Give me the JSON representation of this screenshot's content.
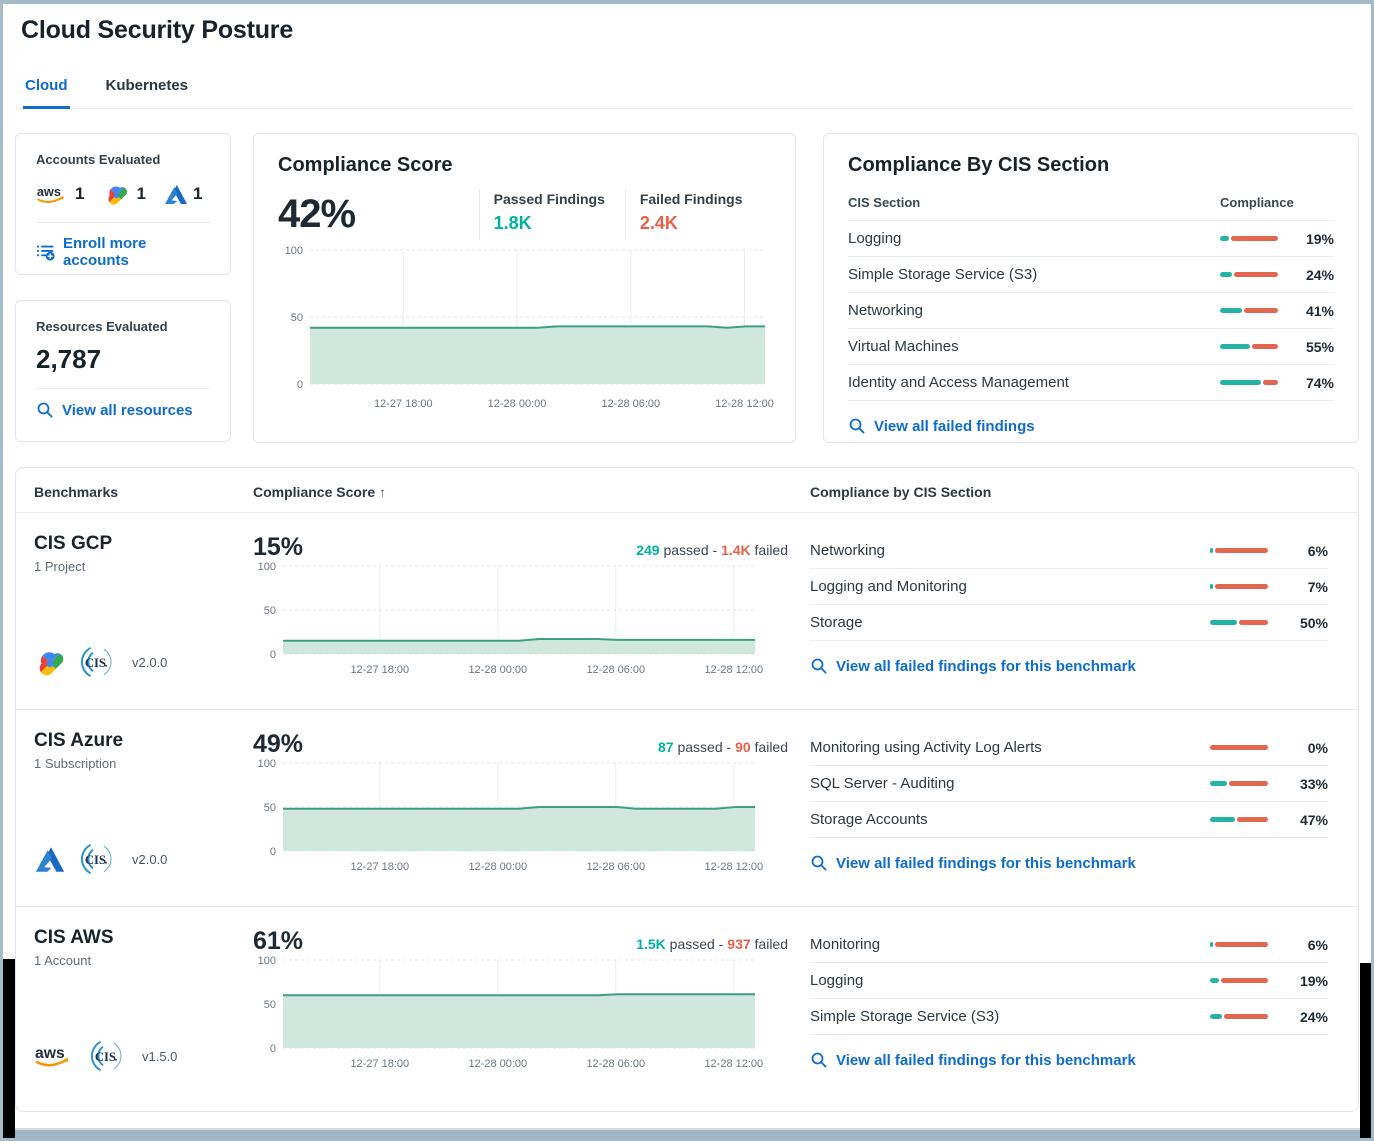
{
  "header": {
    "title": "Cloud Security Posture",
    "tabs": [
      {
        "label": "Cloud",
        "active": true
      },
      {
        "label": "Kubernetes",
        "active": false
      }
    ]
  },
  "accounts_card": {
    "title": "Accounts Evaluated",
    "providers": [
      {
        "icon": "aws-logo",
        "count": "1"
      },
      {
        "icon": "gcp-logo",
        "count": "1"
      },
      {
        "icon": "azure-logo",
        "count": "1"
      }
    ],
    "link_label": "Enroll more accounts"
  },
  "resources_card": {
    "title": "Resources Evaluated",
    "count": "2,787",
    "link_label": "View all resources"
  },
  "compliance_score_card": {
    "title": "Compliance Score",
    "score": "42%",
    "passed_label": "Passed Findings",
    "passed_value": "1.8K",
    "failed_label": "Failed Findings",
    "failed_value": "2.4K",
    "chart_index": 0
  },
  "cis_section_card": {
    "title": "Compliance By CIS Section",
    "columns": {
      "section": "CIS Section",
      "compliance": "Compliance"
    },
    "rows": [
      {
        "label": "Logging",
        "pct": 19
      },
      {
        "label": "Simple Storage Service (S3)",
        "pct": 24
      },
      {
        "label": "Networking",
        "pct": 41
      },
      {
        "label": "Virtual Machines",
        "pct": 55
      },
      {
        "label": "Identity and Access Management",
        "pct": 74
      }
    ],
    "link_label": "View all failed findings"
  },
  "benchmarks_table": {
    "columns": {
      "benchmarks": "Benchmarks",
      "score": "Compliance Score",
      "score_sort_icon": "↑",
      "sections": "Compliance by CIS Section"
    },
    "passed_word": "passed",
    "separator": "-",
    "failed_word": "failed",
    "rows": [
      {
        "name": "CIS GCP",
        "scope": "1 Project",
        "provider_icon": "gcp-logo",
        "framework_icon": "cis-logo",
        "version": "v2.0.0",
        "score": "15%",
        "passed_value": "249",
        "failed_value": "1.4K",
        "sections": [
          {
            "label": "Networking",
            "pct": 6
          },
          {
            "label": "Logging and Monitoring",
            "pct": 7
          },
          {
            "label": "Storage",
            "pct": 50
          }
        ],
        "link_label": "View all failed findings for this benchmark",
        "chart_index": 1
      },
      {
        "name": "CIS Azure",
        "scope": "1 Subscription",
        "provider_icon": "azure-logo",
        "framework_icon": "cis-logo",
        "version": "v2.0.0",
        "score": "49%",
        "passed_value": "87",
        "failed_value": "90",
        "sections": [
          {
            "label": "Monitoring using Activity Log Alerts",
            "pct": 0
          },
          {
            "label": "SQL Server - Auditing",
            "pct": 33
          },
          {
            "label": "Storage Accounts",
            "pct": 47
          }
        ],
        "link_label": "View all failed findings for this benchmark",
        "chart_index": 2
      },
      {
        "name": "CIS AWS",
        "scope": "1 Account",
        "provider_icon": "aws-logo",
        "framework_icon": "cis-logo",
        "version": "v1.5.0",
        "score": "61%",
        "passed_value": "1.5K",
        "failed_value": "937",
        "sections": [
          {
            "label": "Monitoring",
            "pct": 6
          },
          {
            "label": "Logging",
            "pct": 19
          },
          {
            "label": "Simple Storage Service (S3)",
            "pct": 24
          }
        ],
        "link_label": "View all failed findings for this benchmark",
        "chart_index": 3
      }
    ]
  },
  "chart_data": [
    {
      "id": "overall-compliance-score-trend",
      "type": "area",
      "ylim": [
        0,
        100
      ],
      "y_ticks": [
        0,
        50,
        100
      ],
      "x_ticks": [
        {
          "f": 0.205,
          "label": "12-27 18:00"
        },
        {
          "f": 0.455,
          "label": "12-28 00:00"
        },
        {
          "f": 0.705,
          "label": "12-28 06:00"
        },
        {
          "f": 0.955,
          "label": "12-28 12:00"
        }
      ],
      "values": [
        42,
        42,
        42,
        42,
        42,
        42,
        42,
        42,
        42,
        42,
        42,
        42,
        42,
        43,
        43,
        43,
        43,
        43,
        43,
        43,
        43,
        43,
        42,
        43,
        43
      ]
    },
    {
      "id": "cis-gcp-score-trend",
      "type": "area",
      "ylim": [
        0,
        100
      ],
      "y_ticks": [
        0,
        50,
        100
      ],
      "x_ticks": [
        {
          "f": 0.205,
          "label": "12-27 18:00"
        },
        {
          "f": 0.455,
          "label": "12-28 00:00"
        },
        {
          "f": 0.705,
          "label": "12-28 06:00"
        },
        {
          "f": 0.955,
          "label": "12-28 12:00"
        }
      ],
      "values": [
        15,
        15,
        15,
        15,
        15,
        15,
        15,
        15,
        15,
        15,
        15,
        15,
        15,
        17,
        17,
        17,
        17,
        16,
        16,
        16,
        16,
        16,
        16,
        16,
        16
      ]
    },
    {
      "id": "cis-azure-score-trend",
      "type": "area",
      "ylim": [
        0,
        100
      ],
      "y_ticks": [
        0,
        50,
        100
      ],
      "x_ticks": [
        {
          "f": 0.205,
          "label": "12-27 18:00"
        },
        {
          "f": 0.455,
          "label": "12-28 00:00"
        },
        {
          "f": 0.705,
          "label": "12-28 06:00"
        },
        {
          "f": 0.955,
          "label": "12-28 12:00"
        }
      ],
      "values": [
        48,
        48,
        48,
        48,
        48,
        48,
        48,
        48,
        48,
        48,
        48,
        48,
        48,
        50,
        50,
        50,
        50,
        50,
        48,
        48,
        48,
        48,
        48,
        50,
        50
      ]
    },
    {
      "id": "cis-aws-score-trend",
      "type": "area",
      "ylim": [
        0,
        100
      ],
      "y_ticks": [
        0,
        50,
        100
      ],
      "x_ticks": [
        {
          "f": 0.205,
          "label": "12-27 18:00"
        },
        {
          "f": 0.455,
          "label": "12-28 00:00"
        },
        {
          "f": 0.705,
          "label": "12-28 06:00"
        },
        {
          "f": 0.955,
          "label": "12-28 12:00"
        }
      ],
      "values": [
        60,
        60,
        60,
        60,
        60,
        60,
        60,
        60,
        60,
        60,
        60,
        60,
        60,
        60,
        60,
        60,
        60,
        61,
        61,
        61,
        61,
        61,
        61,
        61,
        61
      ]
    }
  ],
  "colors": {
    "link": "#0d6cce",
    "pass_teal": "#00b2a1",
    "fail_red": "#e8604a",
    "bar_teal": "#25b4a3",
    "bar_orange": "#e2674e",
    "chart_line": "#3f9f85",
    "chart_fill": "#cfe7dc"
  }
}
